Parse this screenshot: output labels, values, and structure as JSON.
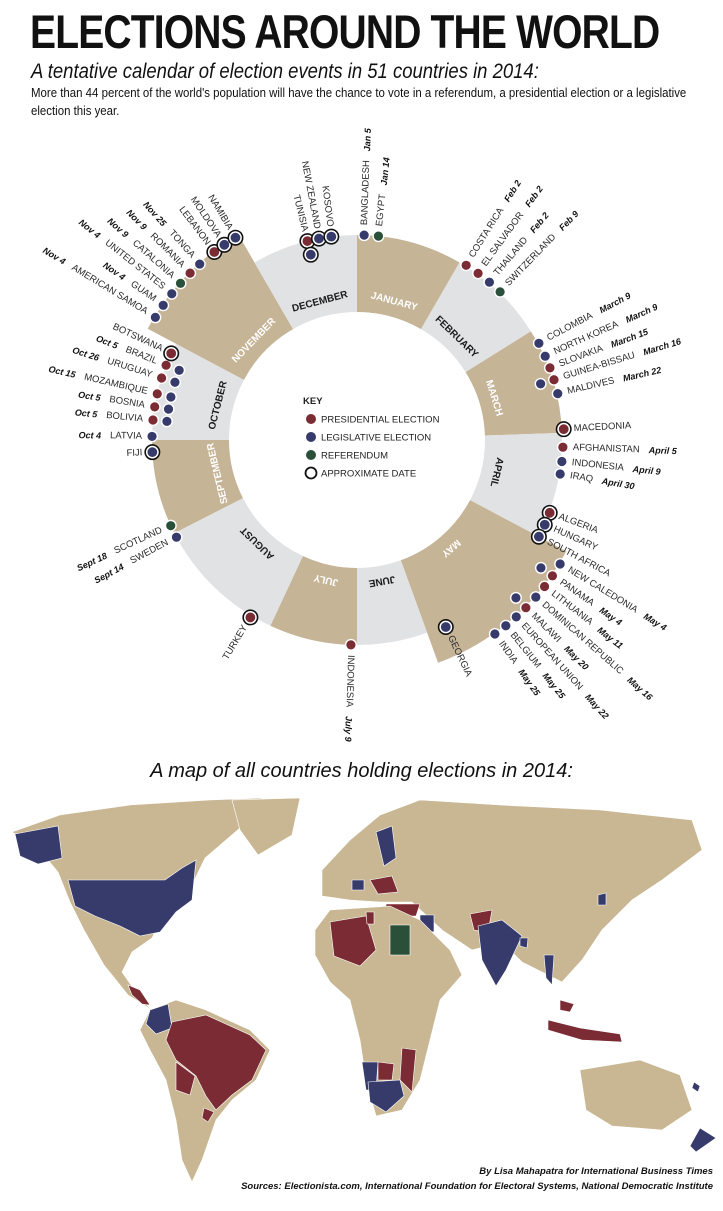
{
  "header": {
    "title": "ELECTIONS AROUND THE WORLD",
    "subtitle": "A tentative calendar of election events in 51 countries in 2014:",
    "description": "More than 44 percent of the world's population will have the chance to vote in a referendum, a presidential election or a legislative election this year."
  },
  "colors": {
    "presidential": "#7b2b33",
    "legislative": "#363b6c",
    "referendum": "#2b5039",
    "month_beige": "#c6b497",
    "month_grey": "#e1e2e4",
    "map_land": "#c9b794"
  },
  "key": {
    "title": "KEY",
    "items": [
      {
        "label": "PRESIDENTIAL ELECTION",
        "type": "presidential"
      },
      {
        "label": "LEGISLATIVE ELECTION",
        "type": "legislative"
      },
      {
        "label": "REFERENDUM",
        "type": "referendum"
      },
      {
        "label": "APPROXIMATE DATE",
        "type": "approximate"
      }
    ]
  },
  "months": [
    "JANUARY",
    "FEBRUARY",
    "MARCH",
    "APRIL",
    "MAY",
    "JUNE",
    "JULY",
    "AUGUST",
    "SEPTEMBER",
    "OCTOBER",
    "NOVEMBER",
    "DECEMBER"
  ],
  "events": [
    {
      "country": "BANGLADESH",
      "date": "Jan 5",
      "types": [
        "legislative"
      ],
      "approximate": false
    },
    {
      "country": "EGYPT",
      "date": "Jan 14",
      "types": [
        "referendum"
      ],
      "approximate": false
    },
    {
      "country": "COSTA RICA",
      "date": "Feb 2",
      "types": [
        "presidential"
      ],
      "approximate": false
    },
    {
      "country": "EL SALVADOR",
      "date": "Feb 2",
      "types": [
        "presidential"
      ],
      "approximate": false
    },
    {
      "country": "THAILAND",
      "date": "Feb 2",
      "types": [
        "legislative"
      ],
      "approximate": false
    },
    {
      "country": "SWITZERLAND",
      "date": "Feb 9",
      "types": [
        "referendum"
      ],
      "approximate": false
    },
    {
      "country": "COLOMBIA",
      "date": "March 9",
      "types": [
        "legislative"
      ],
      "approximate": false
    },
    {
      "country": "NORTH KOREA",
      "date": "March 9",
      "types": [
        "legislative"
      ],
      "approximate": false
    },
    {
      "country": "SLOVAKIA",
      "date": "March 15",
      "types": [
        "presidential"
      ],
      "approximate": false
    },
    {
      "country": "GUINEA-BISSAU",
      "date": "March 16",
      "types": [
        "presidential",
        "legislative"
      ],
      "approximate": false
    },
    {
      "country": "MALDIVES",
      "date": "March 22",
      "types": [
        "legislative"
      ],
      "approximate": false
    },
    {
      "country": "MACEDONIA",
      "date": "",
      "types": [
        "presidential"
      ],
      "approximate": true
    },
    {
      "country": "AFGHANISTAN",
      "date": "April 5",
      "types": [
        "presidential"
      ],
      "approximate": false
    },
    {
      "country": "INDONESIA",
      "date": "April 9",
      "types": [
        "legislative"
      ],
      "approximate": false
    },
    {
      "country": "IRAQ",
      "date": "April 30",
      "types": [
        "legislative"
      ],
      "approximate": false
    },
    {
      "country": "ALGERIA",
      "date": "",
      "types": [
        "presidential"
      ],
      "approximate": true
    },
    {
      "country": "HUNGARY",
      "date": "",
      "types": [
        "legislative"
      ],
      "approximate": true
    },
    {
      "country": "SOUTH AFRICA",
      "date": "",
      "types": [
        "legislative"
      ],
      "approximate": true
    },
    {
      "country": "NEW CALEDONIA",
      "date": "May 4",
      "types": [
        "legislative"
      ],
      "approximate": false
    },
    {
      "country": "PANAMA",
      "date": "May 4",
      "types": [
        "presidential",
        "legislative"
      ],
      "approximate": false
    },
    {
      "country": "LITHUANIA",
      "date": "May 11",
      "types": [
        "presidential"
      ],
      "approximate": false
    },
    {
      "country": "DOMINICAN REPUBLIC",
      "date": "May 16",
      "types": [
        "legislative"
      ],
      "approximate": false
    },
    {
      "country": "MALAWI",
      "date": "May 20",
      "types": [
        "presidential",
        "legislative"
      ],
      "approximate": false
    },
    {
      "country": "EUROPEAN UNION",
      "date": "May 22",
      "types": [
        "legislative"
      ],
      "approximate": false
    },
    {
      "country": "BELGIUM",
      "date": "May 25",
      "types": [
        "legislative"
      ],
      "approximate": false
    },
    {
      "country": "INDIA",
      "date": "May 25",
      "types": [
        "legislative"
      ],
      "approximate": false
    },
    {
      "country": "GEORGIA",
      "date": "",
      "types": [
        "legislative"
      ],
      "approximate": true
    },
    {
      "country": "INDONESIA",
      "date": "July 9",
      "types": [
        "presidential"
      ],
      "approximate": false
    },
    {
      "country": "TURKEY",
      "date": "",
      "types": [
        "presidential"
      ],
      "approximate": true
    },
    {
      "country": "SWEDEN",
      "date": "Sept 14",
      "types": [
        "legislative"
      ],
      "approximate": false
    },
    {
      "country": "SCOTLAND",
      "date": "Sept 18",
      "types": [
        "referendum"
      ],
      "approximate": false
    },
    {
      "country": "FIJI",
      "date": "",
      "types": [
        "legislative"
      ],
      "approximate": true
    },
    {
      "country": "LATVIA",
      "date": "Oct 4",
      "types": [
        "legislative"
      ],
      "approximate": false
    },
    {
      "country": "BOLIVIA",
      "date": "Oct 5",
      "types": [
        "presidential",
        "legislative"
      ],
      "approximate": false
    },
    {
      "country": "BOSNIA",
      "date": "Oct 5",
      "types": [
        "presidential",
        "legislative"
      ],
      "approximate": false
    },
    {
      "country": "MOZAMBIQUE",
      "date": "Oct 15",
      "types": [
        "presidential",
        "legislative"
      ],
      "approximate": false
    },
    {
      "country": "URUGUAY",
      "date": "Oct 26",
      "types": [
        "presidential",
        "legislative"
      ],
      "approximate": false
    },
    {
      "country": "BRAZIL",
      "date": "Oct 5",
      "types": [
        "presidential",
        "legislative"
      ],
      "approximate": false
    },
    {
      "country": "BOTSWANA",
      "date": "",
      "types": [
        "presidential"
      ],
      "approximate": true
    },
    {
      "country": "AMERICAN SAMOA",
      "date": "Nov 4",
      "types": [
        "legislative"
      ],
      "approximate": false
    },
    {
      "country": "GUAM",
      "date": "Nov 4",
      "types": [
        "legislative"
      ],
      "approximate": false
    },
    {
      "country": "UNITED STATES",
      "date": "Nov 4",
      "types": [
        "legislative"
      ],
      "approximate": false
    },
    {
      "country": "CATALONIA",
      "date": "Nov 9",
      "types": [
        "referendum"
      ],
      "approximate": false
    },
    {
      "country": "ROMANIA",
      "date": "Nov 9",
      "types": [
        "presidential"
      ],
      "approximate": false
    },
    {
      "country": "TONGA",
      "date": "Nov 25",
      "types": [
        "legislative"
      ],
      "approximate": false
    },
    {
      "country": "LEBANON",
      "date": "",
      "types": [
        "presidential"
      ],
      "approximate": true
    },
    {
      "country": "MOLDOVA",
      "date": "",
      "types": [
        "legislative"
      ],
      "approximate": true
    },
    {
      "country": "NAMIBIA",
      "date": "",
      "types": [
        "legislative"
      ],
      "approximate": true
    },
    {
      "country": "TUNISIA",
      "date": "",
      "types": [
        "presidential",
        "legislative"
      ],
      "approximate": true
    },
    {
      "country": "NEW ZEALAND",
      "date": "",
      "types": [
        "legislative"
      ],
      "approximate": true
    },
    {
      "country": "KOSOVO",
      "date": "",
      "types": [
        "legislative"
      ],
      "approximate": true
    }
  ],
  "map": {
    "title": "A map of all countries holding elections in 2014:"
  },
  "footer": {
    "byline": "By Lisa Mahapatra for International Business Times",
    "sources": "Sources: Electionista.com, International Foundation for Electoral Systems, National Democratic Institute"
  }
}
